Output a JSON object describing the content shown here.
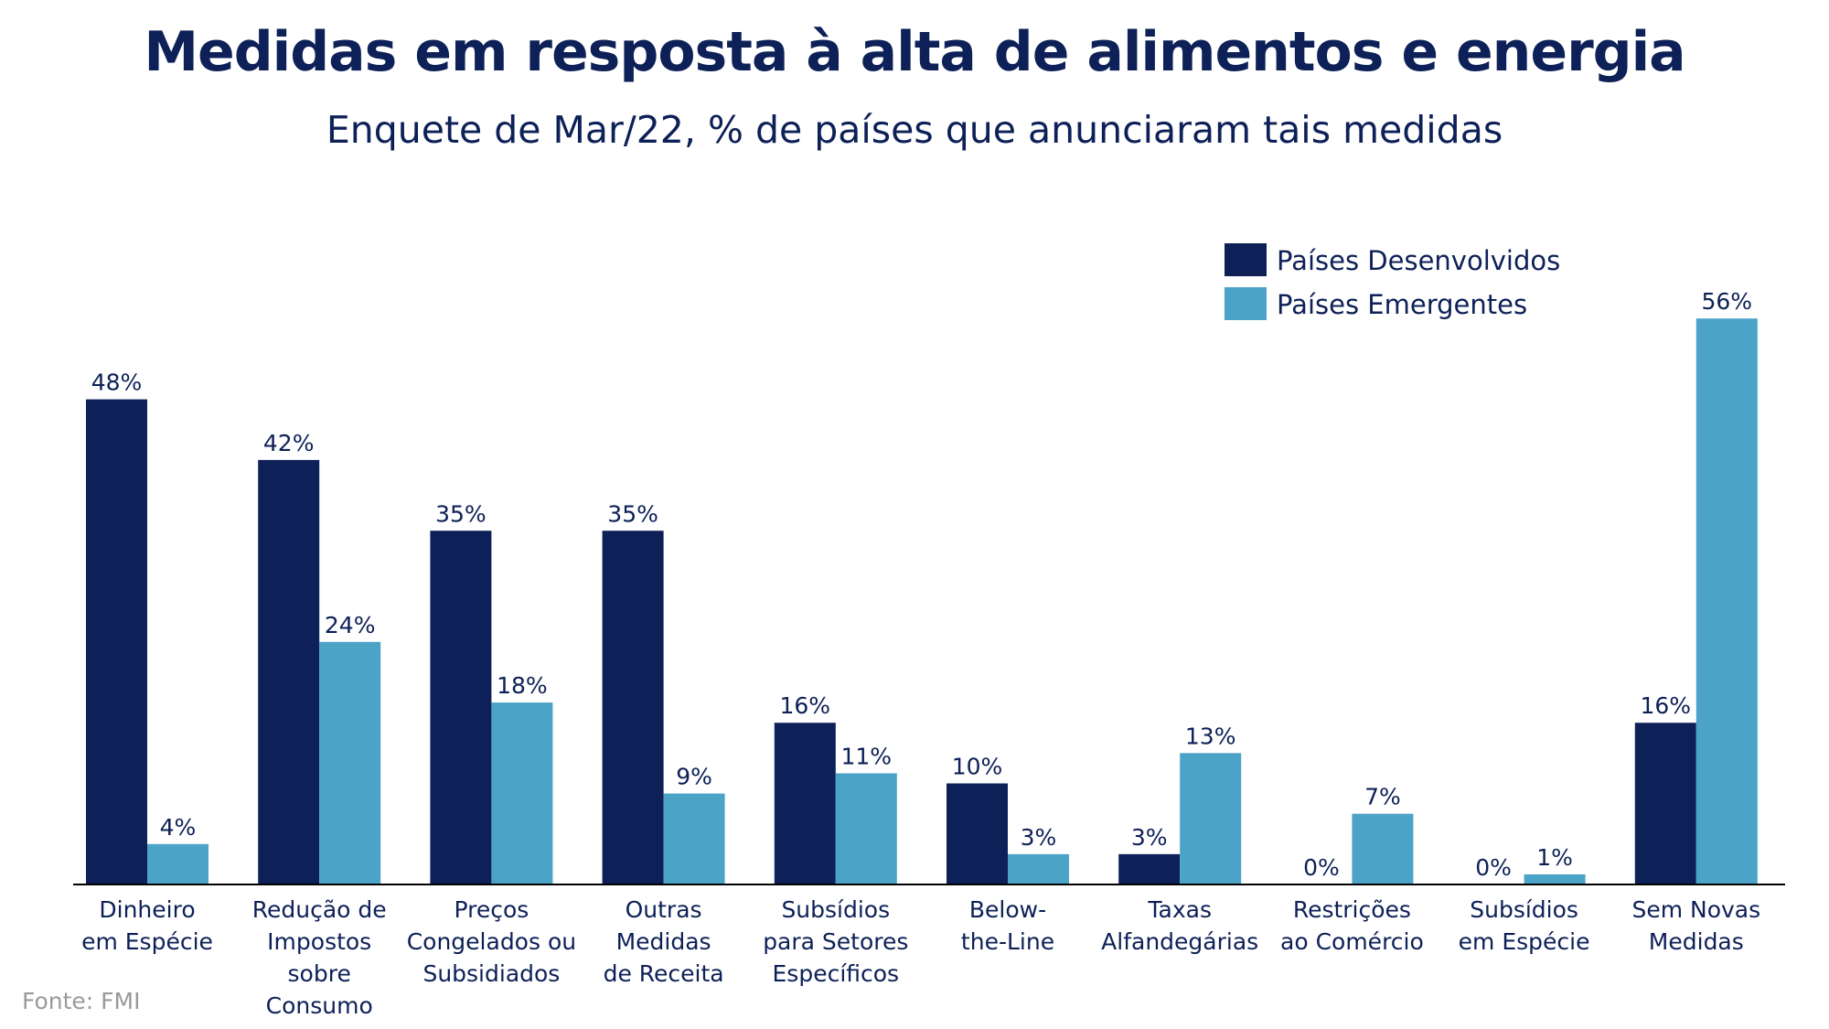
{
  "source": "Fonte: FMI",
  "chart_data": {
    "type": "bar",
    "title": "Medidas em resposta à alta de alimentos e energia",
    "subtitle": "Enquete de Mar/22, % de países que anunciaram tais medidas",
    "xlabel": "",
    "ylabel": "",
    "ylim": [
      0,
      60
    ],
    "grid": false,
    "legend_position": "top-right",
    "value_suffix": "%",
    "categories": [
      [
        "Dinheiro",
        "em Espécie"
      ],
      [
        "Redução de",
        "Impostos",
        "sobre",
        "Consumo"
      ],
      [
        "Preços",
        "Congelados ou",
        "Subsidiados"
      ],
      [
        "Outras",
        "Medidas",
        "de Receita"
      ],
      [
        "Subsídios",
        "para Setores",
        "Específicos"
      ],
      [
        "Below-",
        "the-Line"
      ],
      [
        "Taxas",
        "Alfandegárias"
      ],
      [
        "Restrições",
        "ao Comércio"
      ],
      [
        "Subsídios",
        "em Espécie"
      ],
      [
        "Sem Novas",
        "Medidas"
      ]
    ],
    "series": [
      {
        "name": "Países Desenvolvidos",
        "color": "#0d2057",
        "values": [
          48,
          42,
          35,
          35,
          16,
          10,
          3,
          0,
          0,
          16
        ]
      },
      {
        "name": "Países Emergentes",
        "color": "#4ba3c8",
        "values": [
          4,
          24,
          18,
          9,
          11,
          3,
          13,
          7,
          1,
          56
        ]
      }
    ]
  }
}
